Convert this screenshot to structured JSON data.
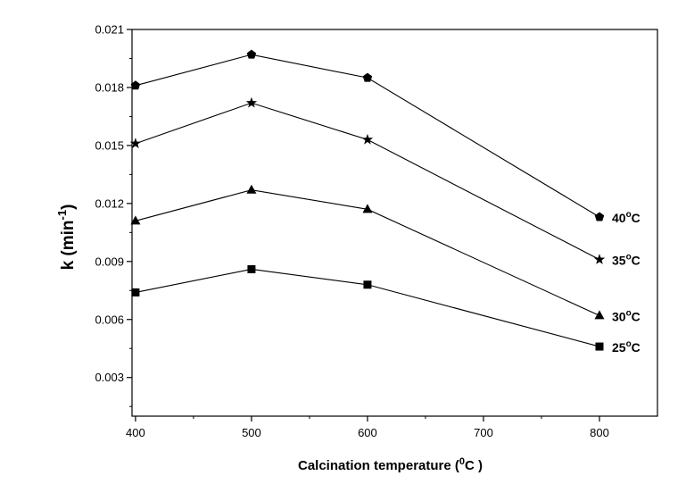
{
  "chart_data": {
    "type": "line",
    "xlabel": "Calcination temperature (",
    "xlabel_sup": "0",
    "xlabel_end": "C )",
    "ylabel": "k (min",
    "ylabel_sup": "-1",
    "ylabel_end": ")",
    "xlim": [
      397,
      850
    ],
    "ylim": [
      0.001,
      0.021
    ],
    "x_ticks": [
      400,
      500,
      600,
      700,
      800
    ],
    "x_tick_labels": [
      "400",
      "500",
      "600",
      "700",
      "800"
    ],
    "y_ticks": [
      0.003,
      0.006,
      0.009,
      0.012,
      0.015,
      0.018,
      0.021
    ],
    "y_tick_labels": [
      "0.003",
      "0.006",
      "0.009",
      "0.012",
      "0.015",
      "0.018",
      "0.021"
    ],
    "x": [
      400,
      500,
      600,
      800
    ],
    "series": [
      {
        "name": "25",
        "name_sup": "o",
        "name_end": "C",
        "marker": "square",
        "values": [
          0.0074,
          0.0086,
          0.0078,
          0.0046
        ]
      },
      {
        "name": "30",
        "name_sup": "o",
        "name_end": "C",
        "marker": "triangle",
        "values": [
          0.0111,
          0.0127,
          0.0117,
          0.0062
        ]
      },
      {
        "name": "35",
        "name_sup": "o",
        "name_end": "C",
        "marker": "star",
        "values": [
          0.0151,
          0.0172,
          0.0153,
          0.0091
        ]
      },
      {
        "name": "40",
        "name_sup": "o",
        "name_end": "C",
        "marker": "pentagon",
        "values": [
          0.0181,
          0.0197,
          0.0185,
          0.0113
        ]
      }
    ],
    "grid": false,
    "legend": "inline-right"
  }
}
